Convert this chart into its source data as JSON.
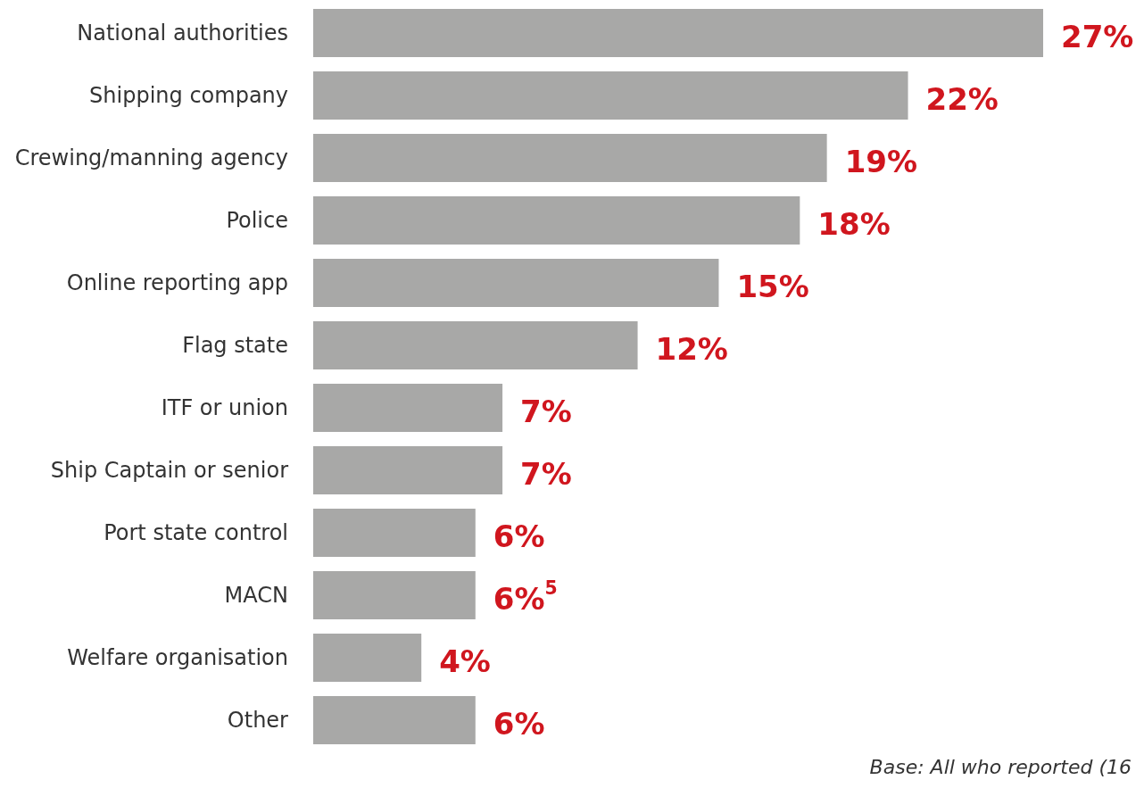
{
  "chart_data": {
    "type": "bar",
    "orientation": "horizontal",
    "categories": [
      "National authorities",
      "Shipping company",
      "Crewing/manning agency",
      "Police",
      "Online reporting app",
      "Flag state",
      "ITF or union",
      "Ship Captain or senior",
      "Port state control",
      "MACN",
      "Welfare organisation",
      "Other"
    ],
    "values": [
      27,
      22,
      19,
      18,
      15,
      12,
      7,
      7,
      6,
      6,
      4,
      6
    ],
    "value_labels": [
      "27%",
      "22%",
      "19%",
      "18%",
      "15%",
      "12%",
      "7%",
      "7%",
      "6%",
      "6%$^{5}$",
      "4%",
      "6%"
    ],
    "color": "#a8a8a7",
    "annotations": [
      "Base: All who reported (16"
    ]
  }
}
